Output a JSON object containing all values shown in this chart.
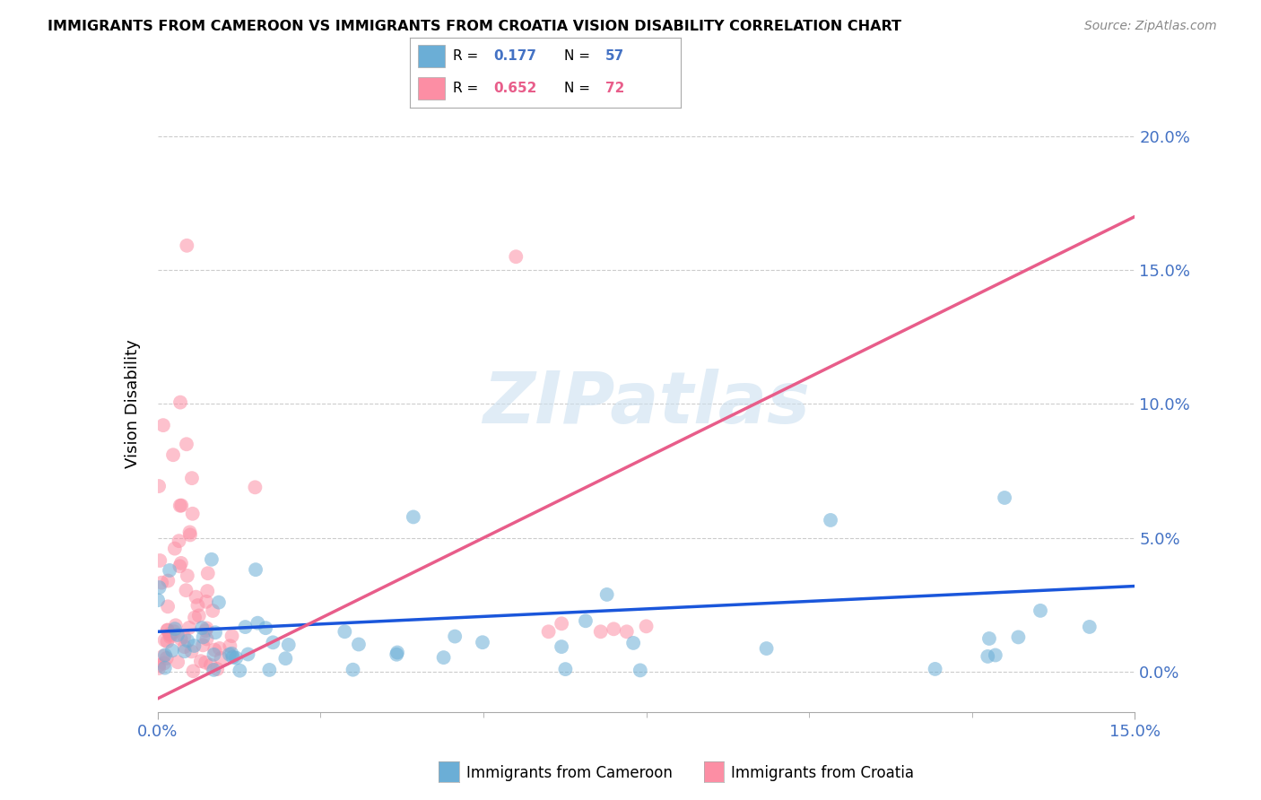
{
  "title": "IMMIGRANTS FROM CAMEROON VS IMMIGRANTS FROM CROATIA VISION DISABILITY CORRELATION CHART",
  "source": "Source: ZipAtlas.com",
  "ylabel": "Vision Disability",
  "ytick_vals": [
    0.0,
    5.0,
    10.0,
    15.0,
    20.0
  ],
  "xlim": [
    0.0,
    15.0
  ],
  "ylim": [
    -1.5,
    21.5
  ],
  "color_cameroon": "#6baed6",
  "color_croatia": "#fc8ea4",
  "trendline_color_cameroon": "#1a56db",
  "trendline_color_croatia": "#e85d8a",
  "cam_trend_x": [
    0.0,
    15.0
  ],
  "cam_trend_y": [
    1.5,
    3.2
  ],
  "cro_trend_x": [
    0.0,
    15.0
  ],
  "cro_trend_y": [
    -1.0,
    17.0
  ],
  "watermark": "ZIPatlas",
  "r_cam": "0.177",
  "n_cam": "57",
  "r_cro": "0.652",
  "n_cro": "72"
}
